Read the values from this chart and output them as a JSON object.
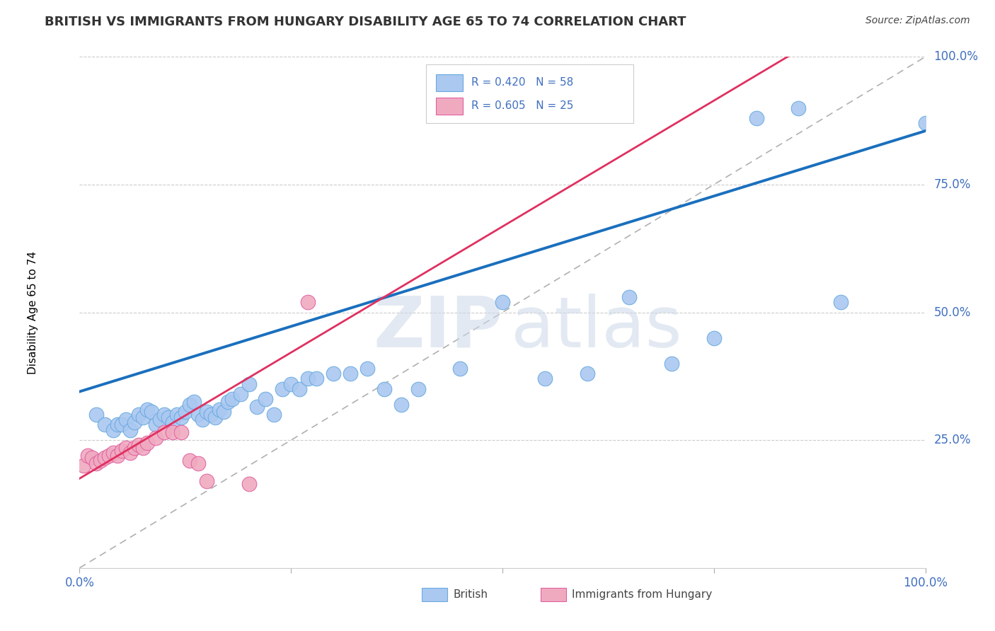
{
  "title": "BRITISH VS IMMIGRANTS FROM HUNGARY DISABILITY AGE 65 TO 74 CORRELATION CHART",
  "source": "Source: ZipAtlas.com",
  "ylabel": "Disability Age 65 to 74",
  "xlim": [
    0.0,
    1.0
  ],
  "ylim": [
    0.0,
    1.0
  ],
  "british_R": 0.42,
  "british_N": 58,
  "hungary_R": 0.605,
  "hungary_N": 25,
  "british_color": "#aac8f0",
  "hungary_color": "#f0aac0",
  "british_edge_color": "#6aaae0",
  "hungary_edge_color": "#e060a0",
  "british_line_color": "#1a6fbd",
  "hungary_line_color": "#e03060",
  "diagonal_color": "#b0b0b0",
  "grid_color": "#cccccc",
  "right_label_color": "#4070c0",
  "title_color": "#333333",
  "british_x": [
    0.02,
    0.03,
    0.04,
    0.045,
    0.05,
    0.055,
    0.06,
    0.065,
    0.07,
    0.075,
    0.08,
    0.085,
    0.09,
    0.095,
    0.1,
    0.105,
    0.11,
    0.115,
    0.12,
    0.125,
    0.13,
    0.135,
    0.14,
    0.145,
    0.15,
    0.155,
    0.16,
    0.165,
    0.17,
    0.175,
    0.18,
    0.19,
    0.2,
    0.21,
    0.22,
    0.23,
    0.24,
    0.25,
    0.26,
    0.27,
    0.28,
    0.3,
    0.32,
    0.34,
    0.36,
    0.38,
    0.4,
    0.45,
    0.5,
    0.55,
    0.6,
    0.65,
    0.7,
    0.75,
    0.8,
    0.85,
    0.9,
    1.0
  ],
  "british_y": [
    0.3,
    0.28,
    0.27,
    0.28,
    0.28,
    0.29,
    0.27,
    0.285,
    0.3,
    0.295,
    0.31,
    0.305,
    0.28,
    0.29,
    0.3,
    0.295,
    0.285,
    0.3,
    0.295,
    0.305,
    0.32,
    0.325,
    0.3,
    0.29,
    0.305,
    0.3,
    0.295,
    0.31,
    0.305,
    0.325,
    0.33,
    0.34,
    0.36,
    0.315,
    0.33,
    0.3,
    0.35,
    0.36,
    0.35,
    0.37,
    0.37,
    0.38,
    0.38,
    0.39,
    0.35,
    0.32,
    0.35,
    0.39,
    0.52,
    0.37,
    0.38,
    0.53,
    0.4,
    0.45,
    0.88,
    0.9,
    0.52,
    0.87
  ],
  "hungary_x": [
    0.005,
    0.01,
    0.015,
    0.02,
    0.025,
    0.03,
    0.035,
    0.04,
    0.045,
    0.05,
    0.055,
    0.06,
    0.065,
    0.07,
    0.075,
    0.08,
    0.09,
    0.1,
    0.11,
    0.12,
    0.13,
    0.14,
    0.15,
    0.2,
    0.27
  ],
  "hungary_y": [
    0.2,
    0.22,
    0.215,
    0.205,
    0.21,
    0.215,
    0.22,
    0.225,
    0.22,
    0.23,
    0.235,
    0.225,
    0.235,
    0.24,
    0.235,
    0.245,
    0.255,
    0.265,
    0.265,
    0.265,
    0.21,
    0.205,
    0.17,
    0.165,
    0.52
  ],
  "british_line_x0": 0.0,
  "british_line_y0": 0.345,
  "british_line_x1": 1.0,
  "british_line_y1": 0.855,
  "hungary_line_x0": 0.0,
  "hungary_line_y0": 0.175,
  "hungary_line_x1": 0.35,
  "hungary_line_y1": 0.52
}
